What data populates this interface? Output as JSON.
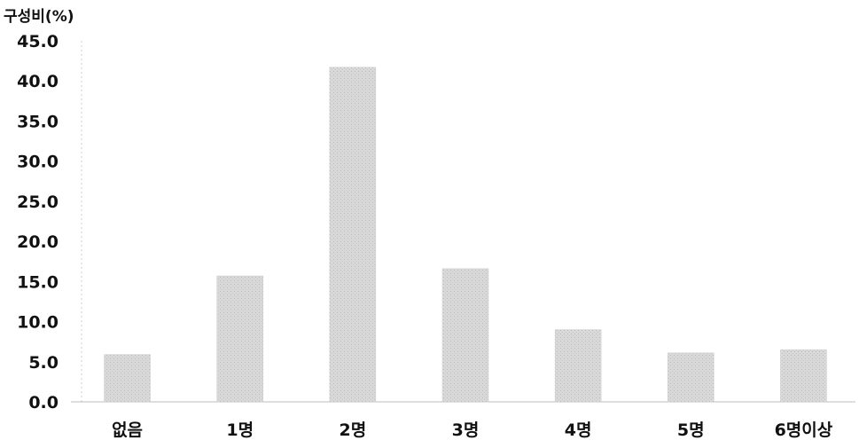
{
  "chart_data": {
    "type": "bar",
    "ylabel": "구성비(%)",
    "xlabel": "",
    "categories": [
      "없음",
      "1명",
      "2명",
      "3명",
      "4명",
      "5명",
      "6명이상"
    ],
    "values": [
      5.9,
      15.7,
      41.7,
      16.6,
      9.0,
      6.1,
      6.5
    ],
    "ylim": [
      0,
      45
    ],
    "yticks": [
      "0.0",
      "5.0",
      "10.0",
      "15.0",
      "20.0",
      "25.0",
      "30.0",
      "35.0",
      "40.0",
      "45.0"
    ],
    "grid": false,
    "bar_color": "#d6d6d6"
  }
}
